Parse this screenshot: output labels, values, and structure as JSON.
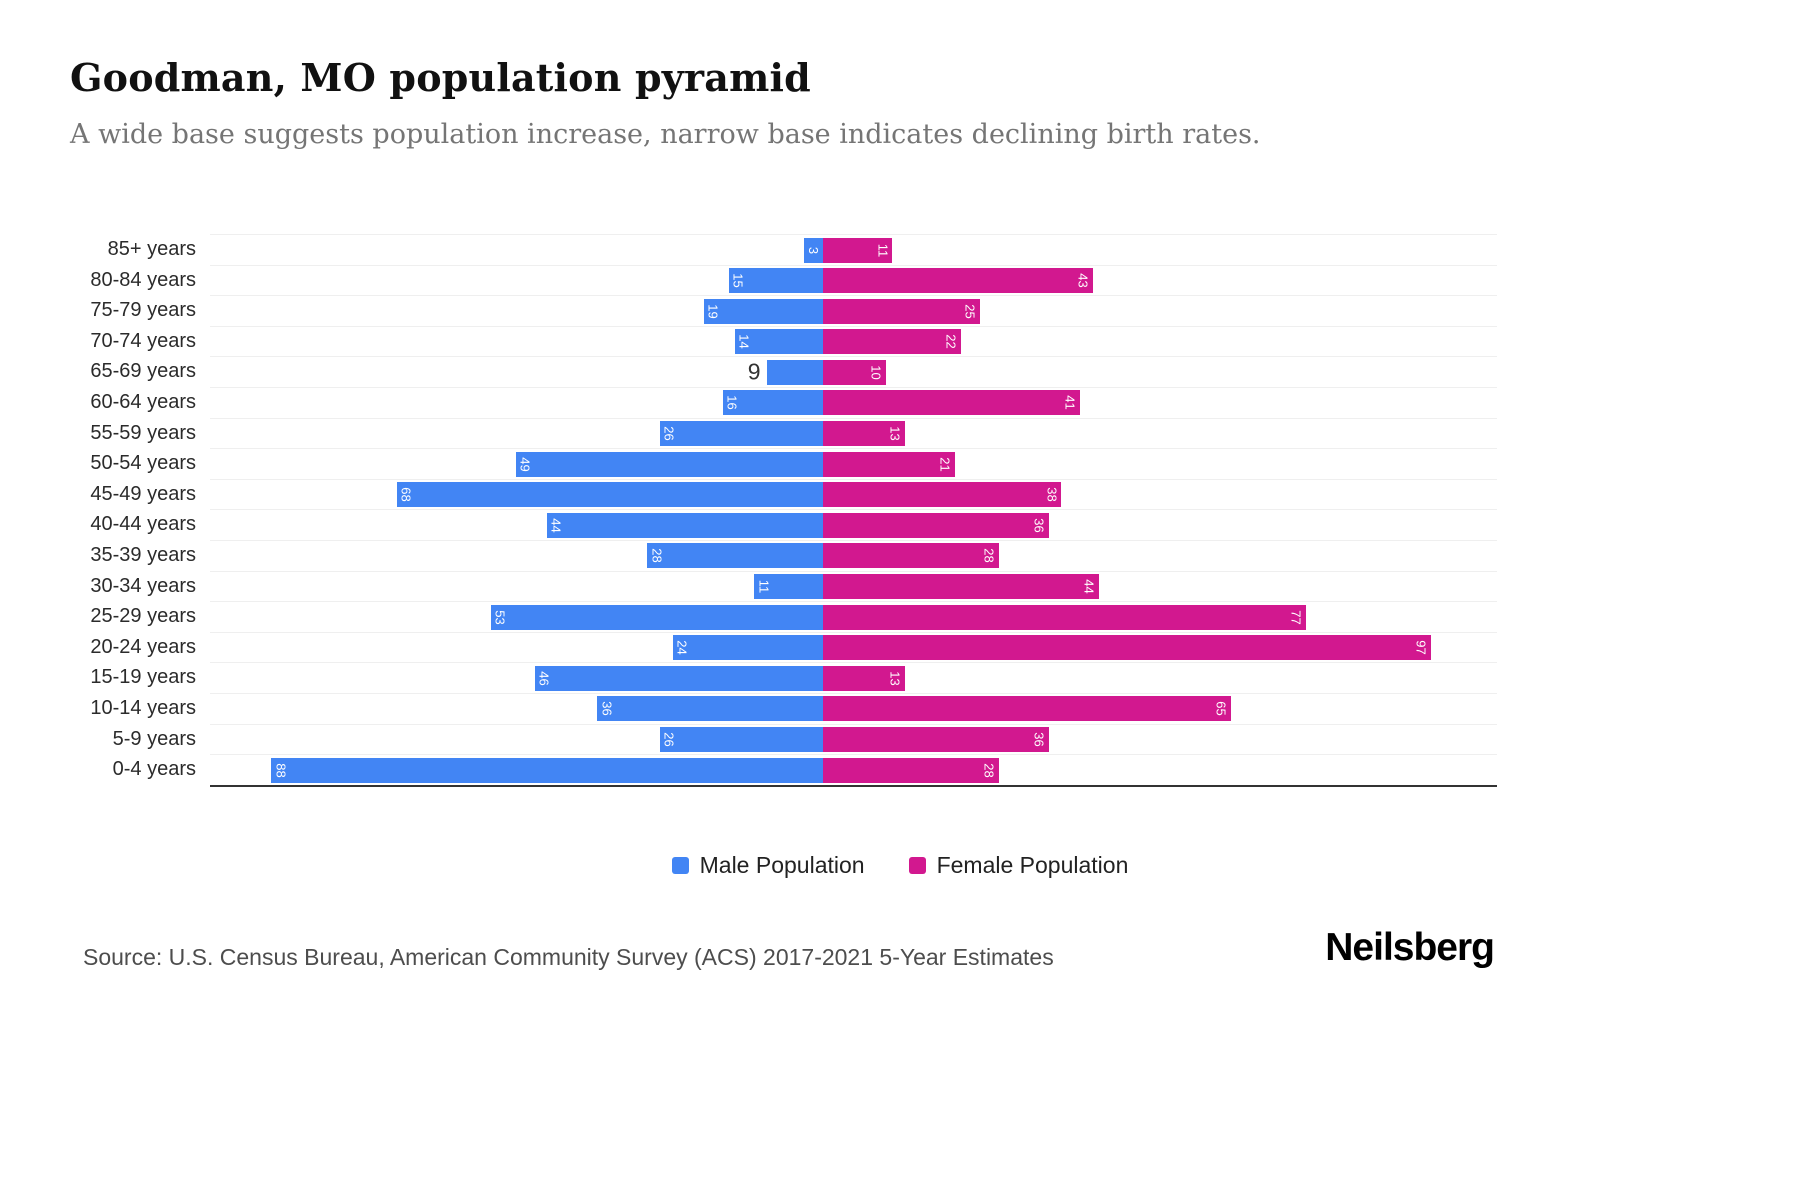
{
  "header": {
    "title": "Goodman, MO population pyramid",
    "subtitle": "A wide base suggests population increase, narrow base indicates declining birth rates."
  },
  "legend": {
    "male_label": "Male Population",
    "female_label": "Female Population"
  },
  "footer": {
    "source": "Source: U.S. Census Bureau, American Community Survey (ACS) 2017-2021 5-Year Estimates",
    "logo": "Neilsberg"
  },
  "colors": {
    "male": "#4285F4",
    "female": "#D2188F"
  },
  "chart_data": {
    "type": "bar",
    "subtype": "population-pyramid",
    "orientation": "horizontal",
    "title": "Goodman, MO population pyramid",
    "categories": [
      "85+ years",
      "80-84 years",
      "75-79 years",
      "70-74 years",
      "65-69 years",
      "60-64 years",
      "55-59 years",
      "50-54 years",
      "45-49 years",
      "40-44 years",
      "35-39 years",
      "30-34 years",
      "25-29 years",
      "20-24 years",
      "15-19 years",
      "10-14 years",
      "5-9 years",
      "0-4 years"
    ],
    "series": [
      {
        "name": "Male Population",
        "values": [
          3,
          15,
          19,
          14,
          9,
          16,
          26,
          49,
          68,
          44,
          28,
          11,
          53,
          24,
          46,
          36,
          26,
          88
        ]
      },
      {
        "name": "Female Population",
        "values": [
          11,
          43,
          25,
          22,
          10,
          41,
          13,
          21,
          38,
          36,
          28,
          44,
          77,
          97,
          13,
          65,
          36,
          28
        ]
      }
    ],
    "xmax": 100,
    "grid": true,
    "legend_position": "bottom",
    "value_labels": "inside-bar-tip-rotated",
    "male_label_outside": [
      "65-69 years"
    ]
  }
}
